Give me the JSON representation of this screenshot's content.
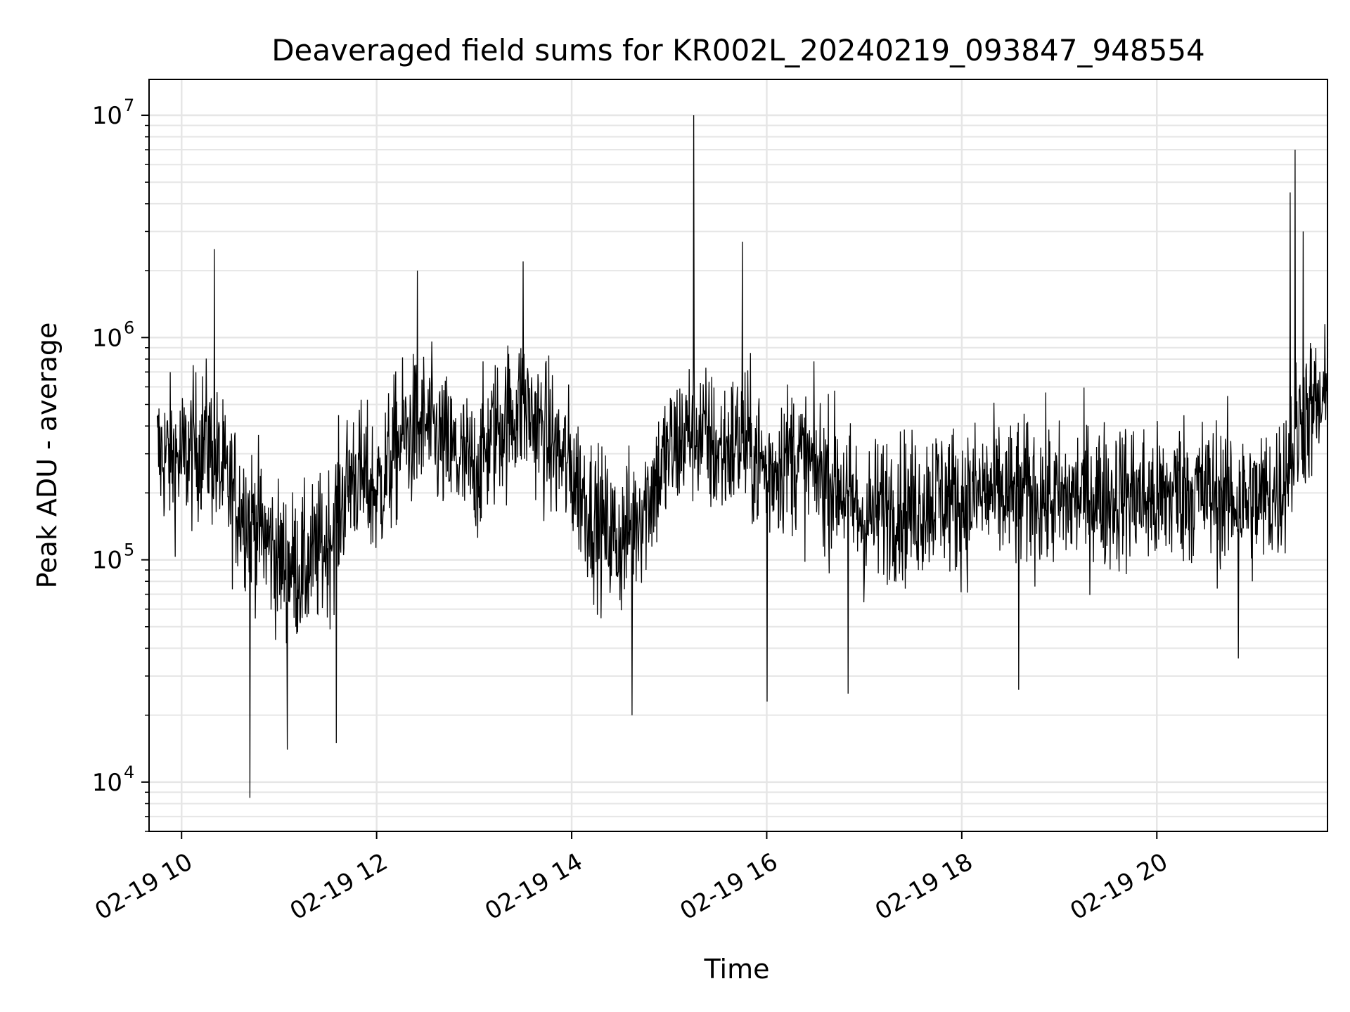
{
  "chart_data": {
    "type": "line",
    "title": "Deaveraged field sums for KR002L_20240219_093847_948554",
    "xlabel": "Time",
    "ylabel": "Peak ADU - average",
    "yscale": "log",
    "ylim": [
      6000,
      14500000
    ],
    "xlim": [
      "2024-02-19T09:40",
      "2024-02-19T21:45"
    ],
    "x_ticks": [
      {
        "label": "02-19 10",
        "value": "2024-02-19T10:00"
      },
      {
        "label": "02-19 12",
        "value": "2024-02-19T12:00"
      },
      {
        "label": "02-19 14",
        "value": "2024-02-19T14:00"
      },
      {
        "label": "02-19 16",
        "value": "2024-02-19T16:00"
      },
      {
        "label": "02-19 18",
        "value": "2024-02-19T18:00"
      },
      {
        "label": "02-19 20",
        "value": "2024-02-19T20:00"
      }
    ],
    "y_ticks": [
      {
        "base": "10",
        "exp": "4",
        "value": 10000
      },
      {
        "base": "10",
        "exp": "5",
        "value": 100000
      },
      {
        "base": "10",
        "exp": "6",
        "value": 1000000
      },
      {
        "base": "10",
        "exp": "7",
        "value": 10000000
      }
    ],
    "grid": true,
    "line_color": "#000000",
    "grid_color": "#e6e6e6",
    "series": [
      {
        "x": [
          "2024-02-19T09:45",
          "2024-02-19T10:00",
          "2024-02-19T10:15",
          "2024-02-19T10:30",
          "2024-02-19T10:45",
          "2024-02-19T11:00",
          "2024-02-19T11:15",
          "2024-02-19T11:30",
          "2024-02-19T11:45",
          "2024-02-19T12:00",
          "2024-02-19T12:15",
          "2024-02-19T12:30",
          "2024-02-19T12:45",
          "2024-02-19T13:00",
          "2024-02-19T13:15",
          "2024-02-19T13:30",
          "2024-02-19T13:45",
          "2024-02-19T14:00",
          "2024-02-19T14:15",
          "2024-02-19T14:30",
          "2024-02-19T14:45",
          "2024-02-19T15:00",
          "2024-02-19T15:15",
          "2024-02-19T15:30",
          "2024-02-19T15:45",
          "2024-02-19T16:00",
          "2024-02-19T16:15",
          "2024-02-19T16:30",
          "2024-02-19T16:45",
          "2024-02-19T17:00",
          "2024-02-19T17:15",
          "2024-02-19T17:30",
          "2024-02-19T17:45",
          "2024-02-19T18:00",
          "2024-02-19T18:15",
          "2024-02-19T18:30",
          "2024-02-19T18:45",
          "2024-02-19T19:00",
          "2024-02-19T19:15",
          "2024-02-19T19:30",
          "2024-02-19T19:45",
          "2024-02-19T20:00",
          "2024-02-19T20:15",
          "2024-02-19T20:30",
          "2024-02-19T20:45",
          "2024-02-19T21:00",
          "2024-02-19T21:15",
          "2024-02-19T21:30",
          "2024-02-19T21:45"
        ],
        "y": [
          300000,
          280000,
          350000,
          200000,
          150000,
          100000,
          90000,
          120000,
          250000,
          200000,
          350000,
          400000,
          300000,
          250000,
          400000,
          500000,
          350000,
          250000,
          150000,
          120000,
          180000,
          300000,
          400000,
          300000,
          350000,
          250000,
          300000,
          250000,
          220000,
          150000,
          180000,
          170000,
          200000,
          180000,
          200000,
          190000,
          200000,
          180000,
          200000,
          190000,
          200000,
          180000,
          210000,
          200000,
          190000,
          180000,
          200000,
          450000,
          500000
        ]
      }
    ]
  }
}
